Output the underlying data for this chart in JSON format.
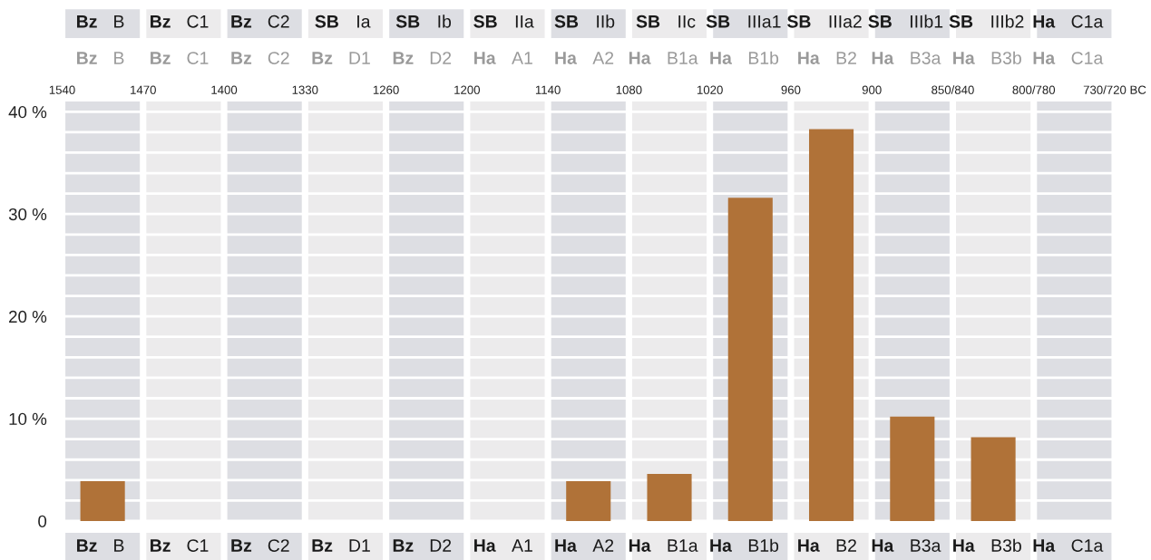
{
  "chart_data": {
    "type": "bar",
    "categories": [
      "Bz B",
      "Bz C1",
      "Bz C2",
      "Bz D1",
      "Bz D2",
      "Ha A1",
      "Ha A2",
      "Ha B1a",
      "Ha B1b",
      "Ha B2",
      "Ha B3a",
      "Ha B3b",
      "Ha C1a"
    ],
    "values": [
      3.9,
      0,
      0,
      0,
      0,
      0,
      3.9,
      4.6,
      31.6,
      38.3,
      10.2,
      8.2,
      0
    ],
    "color": "#b07238",
    "ylim": [
      0,
      41
    ],
    "yticks": [
      0,
      {
        "value": 2,
        "label": null
      },
      {
        "value": 4,
        "label": null
      },
      {
        "value": 6,
        "label": null
      },
      {
        "value": 8,
        "label": null
      },
      {
        "value": 10,
        "label": "10 %"
      },
      {
        "value": 12,
        "label": null
      },
      {
        "value": 14,
        "label": null
      },
      {
        "value": 16,
        "label": null
      },
      {
        "value": 18,
        "label": null
      },
      {
        "value": 20,
        "label": "20 %"
      },
      {
        "value": 22,
        "label": null
      },
      {
        "value": 24,
        "label": null
      },
      {
        "value": 26,
        "label": null
      },
      {
        "value": 28,
        "label": null
      },
      {
        "value": 30,
        "label": "30 %"
      },
      {
        "value": 32,
        "label": null
      },
      {
        "value": 34,
        "label": null
      },
      {
        "value": 36,
        "label": null
      },
      {
        "value": 38,
        "label": null
      },
      {
        "value": 40,
        "label": "40 %"
      }
    ],
    "annotations": [
      "Bz B",
      "Bz C1",
      "Bz C2",
      "SB Ia",
      "SB Ib",
      "SB IIa",
      "SB IIb",
      "SB IIc",
      "SB IIIa1",
      "SB IIIa2",
      "SB IIIb1",
      "SB IIIb2",
      "Ha C1a",
      "Bz B",
      "Bz C1",
      "Bz C2",
      "Bz D1",
      "Bz D2",
      "Ha A1",
      "Ha A2",
      "Ha B1a",
      "Ha B1b",
      "Ha B2",
      "Ha B3a",
      "Ha B3b",
      "Ha C1a",
      "1540",
      "1470",
      "1400",
      "1330",
      "1260",
      "1200",
      "1140",
      "1080",
      "1020",
      "960",
      "900",
      "850/840",
      "800/780",
      "730/720 BC"
    ],
    "bands": [
      {
        "axis": "x",
        "from": "Bz B",
        "to": "Bz B",
        "color": "#dddee3"
      },
      {
        "axis": "x",
        "from": "Bz C1",
        "to": "Bz C1",
        "color": "#ecebec"
      },
      {
        "axis": "x",
        "from": "Bz C2",
        "to": "Bz C2",
        "color": "#dddee3"
      },
      {
        "axis": "x",
        "from": "Bz D1",
        "to": "Bz D1",
        "color": "#ecebec"
      },
      {
        "axis": "x",
        "from": "Bz D2",
        "to": "Bz D2",
        "color": "#dddee3"
      },
      {
        "axis": "x",
        "from": "Ha A1",
        "to": "Ha A1",
        "color": "#ecebec"
      },
      {
        "axis": "x",
        "from": "Ha A2",
        "to": "Ha A2",
        "color": "#dddee3"
      },
      {
        "axis": "x",
        "from": "Ha B1a",
        "to": "Ha B1a",
        "color": "#ecebec"
      },
      {
        "axis": "x",
        "from": "Ha B1b",
        "to": "Ha B1b",
        "color": "#dddee3"
      },
      {
        "axis": "x",
        "from": "Ha B2",
        "to": "Ha B2",
        "color": "#ecebec"
      },
      {
        "axis": "x",
        "from": "Ha B3a",
        "to": "Ha B3a",
        "color": "#dddee3"
      },
      {
        "axis": "x",
        "from": "Ha B3b",
        "to": "Ha B3b",
        "color": "#ecebec"
      },
      {
        "axis": "x",
        "from": "Ha C1a",
        "to": "Ha C1a",
        "color": "#dddee3"
      }
    ],
    "grid": "y",
    "legend": false
  }
}
